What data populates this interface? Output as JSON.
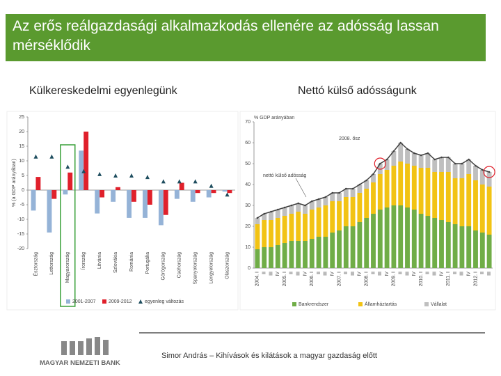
{
  "header": {
    "title": "Az erős reálgazdasági alkalmazkodás ellenére az adósság lassan mérséklődik"
  },
  "chart_data": [
    {
      "type": "bar",
      "title": "Külkereskedelmi egyenlegünk",
      "y_label": "% (a GDP arányában)",
      "categories": [
        "Észtország",
        "Lettország",
        "Magyarország",
        "Írország",
        "Litvánia",
        "Szlovákia",
        "Románia",
        "Portugália",
        "Görögország",
        "Csehország",
        "Spanyolország",
        "Lengyelország",
        "Olaszország"
      ],
      "series": [
        {
          "name": "2001-2007",
          "color": "#95b3d7",
          "values": [
            -7,
            -14.5,
            -1.5,
            13.5,
            -8,
            -4,
            -9.5,
            -9.5,
            -12,
            -3,
            -4,
            -2.5,
            -0.5
          ]
        },
        {
          "name": "2009-2012",
          "color": "#e0202b",
          "values": [
            4.5,
            -3,
            6,
            20,
            -2.5,
            1,
            -4,
            -5,
            -8.5,
            2.5,
            -1,
            -1,
            -1
          ]
        },
        {
          "name": "egyenleg változás",
          "color": "#1f4e5f",
          "marker": "triangle",
          "values": [
            11.5,
            11.5,
            8,
            6.5,
            5.5,
            5,
            5,
            4.5,
            3,
            3,
            3,
            1.5,
            -1.5
          ]
        }
      ],
      "ylim": [
        -20,
        25
      ],
      "yticks": [
        25,
        20,
        15,
        10,
        5,
        0,
        -5,
        -10,
        -15,
        -20
      ],
      "highlight": "Magyarország",
      "highlight_color": "#3aa13a"
    },
    {
      "type": "stacked_bar",
      "title": "Nettó külső adósságunk",
      "y_label": "% GDP arányában",
      "categories": [
        "2004. I",
        "II",
        "III",
        "IV",
        "2005. I",
        "II",
        "III",
        "IV",
        "2006. I",
        "II",
        "III",
        "IV",
        "2007. I",
        "II",
        "III",
        "IV",
        "2008. I",
        "II",
        "III",
        "IV",
        "2009. I",
        "II",
        "III",
        "IV",
        "2010. I",
        "II",
        "III",
        "IV",
        "2011. I",
        "II",
        "III",
        "IV",
        "2012. I",
        "II",
        "III"
      ],
      "series": [
        {
          "name": "Bankrendszer",
          "color": "#70ad47",
          "values": [
            9,
            10,
            10,
            11,
            12,
            13,
            13,
            13,
            14,
            15,
            15,
            17,
            18,
            20,
            20,
            22,
            24,
            26,
            28,
            29,
            30,
            30,
            29,
            28,
            26,
            25,
            24,
            23,
            22,
            21,
            20,
            20,
            18,
            17,
            16
          ]
        },
        {
          "name": "Államháztartás",
          "color": "#f2c314",
          "values": [
            12,
            13,
            13,
            13,
            13,
            13,
            14,
            13,
            14,
            14,
            15,
            15,
            14,
            14,
            14,
            14,
            14,
            15,
            17,
            18,
            19,
            21,
            21,
            21,
            22,
            23,
            22,
            23,
            24,
            22,
            23,
            25,
            24,
            23,
            23
          ]
        },
        {
          "name": "Vállalat",
          "color": "#bfbfbf",
          "values": [
            3,
            3,
            4,
            4,
            4,
            4,
            4,
            4,
            4,
            4,
            4,
            4,
            4,
            4,
            4,
            4,
            4,
            4,
            5,
            5,
            7,
            9,
            7,
            6,
            6,
            7,
            6,
            7,
            7,
            7,
            7,
            7,
            7,
            7,
            7
          ]
        }
      ],
      "line": {
        "name": "nettó külső adósság",
        "color": "#404040",
        "values": [
          24,
          26,
          27,
          28,
          29,
          30,
          31,
          30,
          32,
          33,
          34,
          36,
          36,
          38,
          38,
          40,
          42,
          45,
          50,
          52,
          56,
          60,
          57,
          55,
          54,
          55,
          52,
          53,
          53,
          50,
          50,
          52,
          49,
          47,
          46
        ]
      },
      "annotation": {
        "text": "2008. ősz",
        "color": "#e0202b",
        "points": [
          18,
          34
        ]
      },
      "ylim": [
        0,
        70
      ],
      "yticks": [
        0,
        10,
        20,
        30,
        40,
        50,
        60,
        70
      ]
    }
  ],
  "footer": {
    "bank": "MAGYAR NEMZETI BANK",
    "text": "Simor András – Kihívások és kilátások a magyar gazdaság előtt"
  }
}
